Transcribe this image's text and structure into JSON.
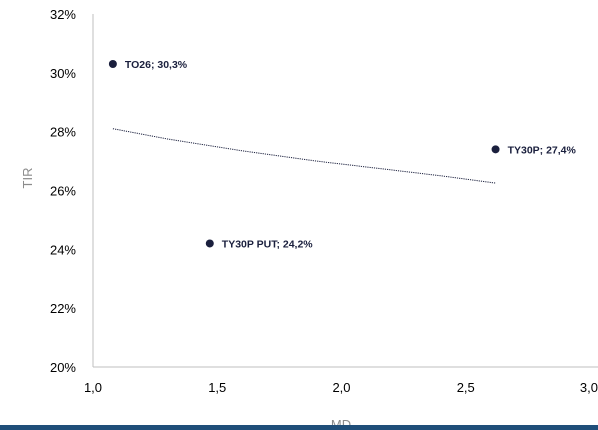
{
  "chart_data": {
    "type": "scatter",
    "xlabel": "MD",
    "ylabel": "TIR",
    "xlim": [
      1.0,
      3.0
    ],
    "ylim": [
      0.2,
      0.32
    ],
    "x_ticks": [
      "1,0",
      "1,5",
      "2,0",
      "2,5",
      "3,0"
    ],
    "y_ticks": [
      "20%",
      "22%",
      "24%",
      "26%",
      "28%",
      "30%",
      "32%"
    ],
    "grid": false,
    "legend": "none",
    "points": [
      {
        "x": 1.08,
        "y": 0.303,
        "label": "TO26; 30,3%"
      },
      {
        "x": 1.47,
        "y": 0.242,
        "label": "TY30P PUT; 24,2%"
      },
      {
        "x": 2.62,
        "y": 0.274,
        "label": "TY30P; 27,4%"
      }
    ],
    "trendline": {
      "style": "dotted",
      "x": [
        1.08,
        1.3,
        1.6,
        1.9,
        2.2,
        2.4,
        2.62
      ],
      "y": [
        0.281,
        0.2775,
        0.2735,
        0.27,
        0.267,
        0.265,
        0.2625
      ]
    },
    "colors": {
      "marker": "#1a1f3d",
      "trendline": "#1a1f3d",
      "axis": "#bfbfbf",
      "bottom_bar": "#1f4e79"
    }
  }
}
